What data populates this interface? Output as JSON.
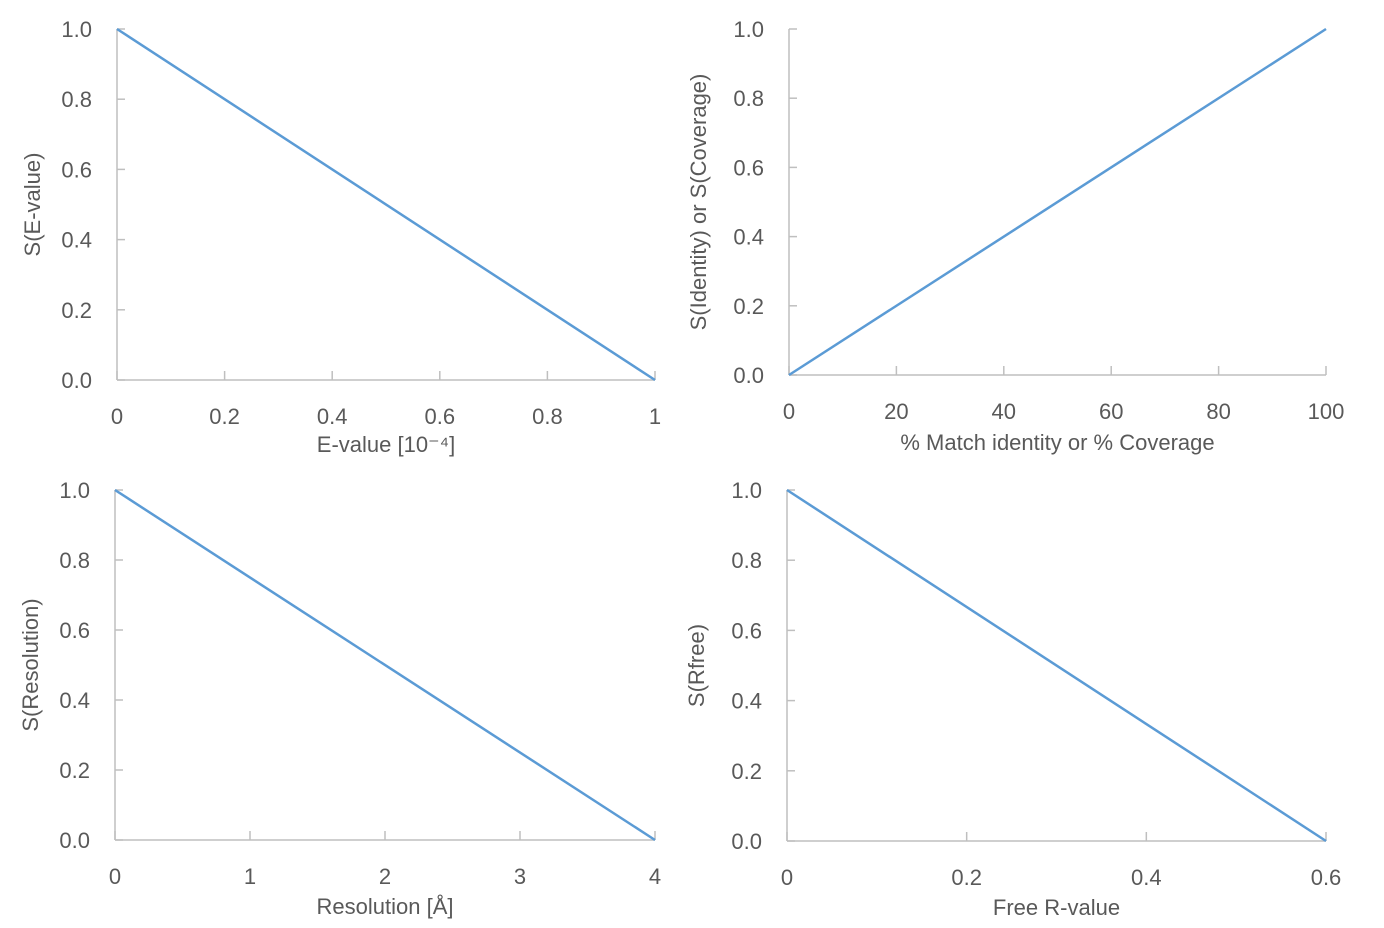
{
  "colors": {
    "line": "#5b9bd5",
    "axis": "#bfbfbf",
    "text": "#595959"
  },
  "chart_data": [
    {
      "type": "line",
      "xlabel": "E-value [10⁻⁴]",
      "ylabel": "S(E-value)",
      "xlim": [
        0,
        1
      ],
      "ylim": [
        0,
        1
      ],
      "xticks": [
        "0",
        "0.2",
        "0.4",
        "0.6",
        "0.8",
        "1"
      ],
      "yticks": [
        "0.0",
        "0.2",
        "0.4",
        "0.6",
        "0.8",
        "1.0"
      ],
      "grid": false,
      "x": [
        0,
        1
      ],
      "y": [
        1,
        0
      ]
    },
    {
      "type": "line",
      "xlabel": "% Match identity or % Coverage",
      "ylabel": "S(Identity) or S(Coverage)",
      "xlim": [
        0,
        100
      ],
      "ylim": [
        0,
        1
      ],
      "xticks": [
        "0",
        "20",
        "40",
        "60",
        "80",
        "100"
      ],
      "yticks": [
        "0.0",
        "0.2",
        "0.4",
        "0.6",
        "0.8",
        "1.0"
      ],
      "grid": false,
      "x": [
        0,
        100
      ],
      "y": [
        0,
        1
      ]
    },
    {
      "type": "line",
      "xlabel": "Resolution [Å]",
      "ylabel": "S(Resolution)",
      "xlim": [
        0,
        4
      ],
      "ylim": [
        0,
        1
      ],
      "xticks": [
        "0",
        "1",
        "2",
        "3",
        "4"
      ],
      "yticks": [
        "0.0",
        "0.2",
        "0.4",
        "0.6",
        "0.8",
        "1.0"
      ],
      "grid": false,
      "x": [
        0,
        4
      ],
      "y": [
        1,
        0
      ]
    },
    {
      "type": "line",
      "xlabel": "Free R-value",
      "ylabel": "S(Rfree)",
      "xlim": [
        0,
        0.6
      ],
      "ylim": [
        0,
        1
      ],
      "xticks": [
        "0",
        "0.2",
        "0.4",
        "0.6"
      ],
      "yticks": [
        "0.0",
        "0.2",
        "0.4",
        "0.6",
        "0.8",
        "1.0"
      ],
      "grid": false,
      "x": [
        0,
        0.6
      ],
      "y": [
        1,
        0
      ]
    }
  ]
}
